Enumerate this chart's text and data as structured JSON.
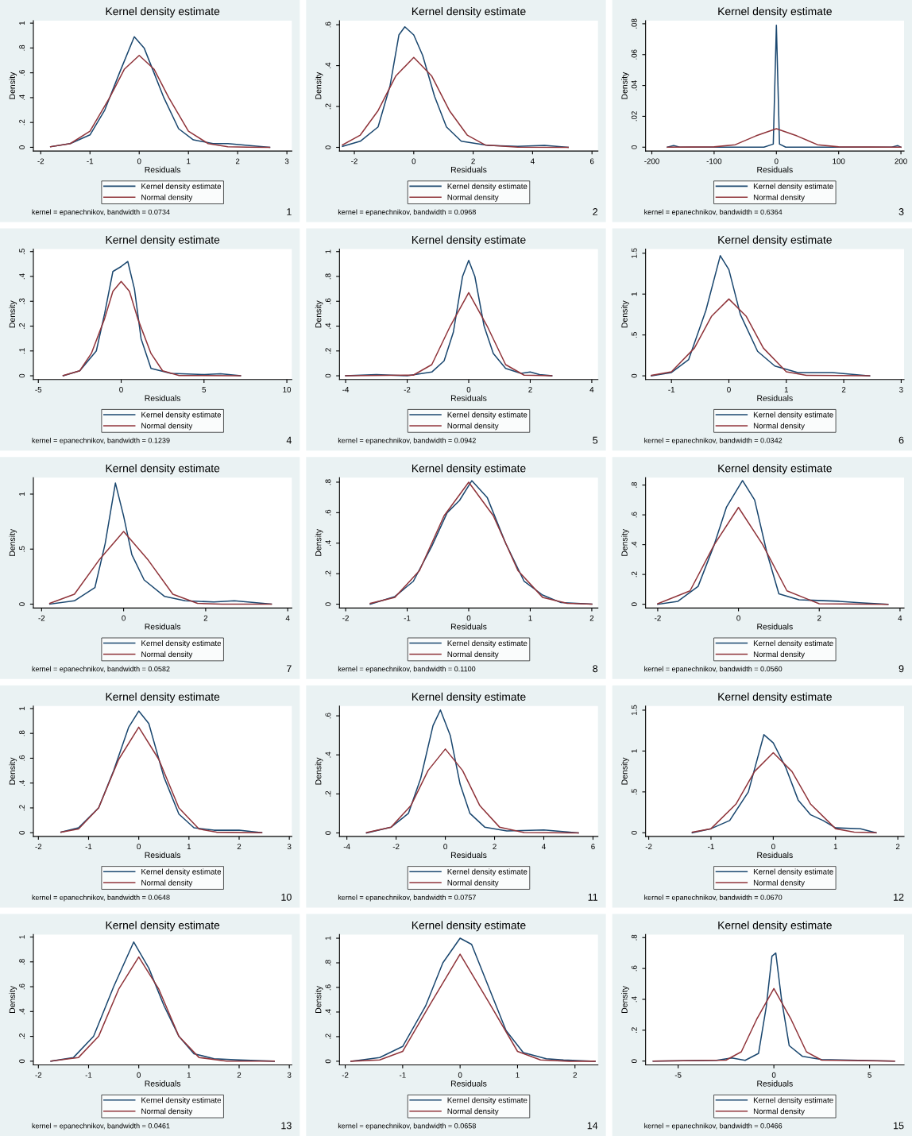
{
  "chart_data": [
    {
      "type": "line",
      "title": "Kernel density estimate",
      "xlabel": "Residuals",
      "ylabel": "Density",
      "legend": "bottom",
      "xlim": [
        -2.15,
        3.1
      ],
      "xticks": [
        -2,
        -1,
        0,
        1,
        2,
        3
      ],
      "ylim": [
        -0.03,
        1.02
      ],
      "yticks": [
        0,
        {
          "value": 0.2,
          "label": ".2"
        },
        {
          "value": 0.4,
          "label": ".4"
        },
        {
          "value": 0.6,
          "label": ".6"
        },
        {
          "value": 0.8,
          "label": ".8"
        },
        1
      ],
      "annotations": [
        "kernel = epanechnikov, bandwidth = 0.0734",
        "1"
      ],
      "series": [
        {
          "name": "Kernel density estimate",
          "color": "#1a476f",
          "x": [
            -1.8,
            -1.4,
            -1.0,
            -0.7,
            -0.4,
            -0.1,
            0.1,
            0.3,
            0.5,
            0.8,
            1.1,
            1.5,
            1.8,
            2.2,
            2.65
          ],
          "values": [
            0.005,
            0.03,
            0.1,
            0.3,
            0.6,
            0.89,
            0.8,
            0.6,
            0.4,
            0.15,
            0.06,
            0.03,
            0.03,
            0.015,
            0
          ]
        },
        {
          "name": "Normal density",
          "color": "#90353b",
          "x": [
            -1.8,
            -1.4,
            -1.0,
            -0.6,
            -0.3,
            0,
            0.3,
            0.6,
            1.0,
            1.4,
            1.8,
            2.2,
            2.65
          ],
          "values": [
            0.005,
            0.03,
            0.13,
            0.4,
            0.63,
            0.74,
            0.63,
            0.4,
            0.13,
            0.03,
            0.005,
            0.001,
            0
          ]
        }
      ]
    },
    {
      "type": "line",
      "title": "Kernel density estimate",
      "xlabel": "Residuals",
      "ylabel": "Density",
      "legend": "bottom",
      "xlim": [
        -2.5,
        6.2
      ],
      "xticks": [
        -2,
        0,
        2,
        4,
        6
      ],
      "ylim": [
        -0.018,
        0.62
      ],
      "yticks": [
        0,
        {
          "value": 0.2,
          "label": ".2"
        },
        {
          "value": 0.4,
          "label": ".4"
        },
        {
          "value": 0.6,
          "label": ".6"
        }
      ],
      "annotations": [
        "kernel = epanechnikov, bandwidth = 0.0968",
        "2"
      ],
      "series": [
        {
          "name": "Kernel density estimate",
          "color": "#1a476f",
          "x": [
            -2.4,
            -1.8,
            -1.2,
            -0.8,
            -0.5,
            -0.3,
            0,
            0.3,
            0.7,
            1.1,
            1.6,
            2.5,
            3.5,
            4.4,
            5.2
          ],
          "values": [
            0.005,
            0.03,
            0.1,
            0.3,
            0.55,
            0.59,
            0.55,
            0.45,
            0.25,
            0.1,
            0.03,
            0.01,
            0.005,
            0.01,
            0
          ]
        },
        {
          "name": "Normal density",
          "color": "#90353b",
          "x": [
            -2.4,
            -1.8,
            -1.2,
            -0.6,
            0,
            0.6,
            1.2,
            1.8,
            2.4,
            3.5,
            5.2
          ],
          "values": [
            0.012,
            0.06,
            0.18,
            0.35,
            0.44,
            0.35,
            0.18,
            0.06,
            0.012,
            0.001,
            0
          ]
        }
      ]
    },
    {
      "type": "line",
      "title": "Kernel density estimate",
      "xlabel": "Residuals",
      "ylabel": "Density",
      "legend": "bottom",
      "xlim": [
        -210,
        205
      ],
      "xticks": [
        -200,
        -100,
        0,
        100,
        200
      ],
      "ylim": [
        -0.0025,
        0.082
      ],
      "yticks": [
        0,
        {
          "value": 0.02,
          "label": ".02"
        },
        {
          "value": 0.04,
          "label": ".04"
        },
        {
          "value": 0.06,
          "label": ".06"
        },
        {
          "value": 0.08,
          "label": ".08"
        }
      ],
      "annotations": [
        "kernel = epanechnikov, bandwidth = 0.6364",
        "3"
      ],
      "series": [
        {
          "name": "Kernel density estimate",
          "color": "#1a476f",
          "x": [
            -175,
            -165,
            -155,
            -20,
            -5,
            0,
            5,
            15,
            185,
            195,
            200
          ],
          "values": [
            0,
            0.001,
            0,
            0,
            0.002,
            0.079,
            0.002,
            0,
            0,
            0.001,
            0
          ]
        },
        {
          "name": "Normal density",
          "color": "#90353b",
          "x": [
            -175,
            -100,
            -66,
            -33,
            0,
            33,
            66,
            100,
            200
          ],
          "values": [
            0,
            0.0002,
            0.0016,
            0.0073,
            0.012,
            0.0073,
            0.0016,
            0.0002,
            0
          ]
        }
      ]
    },
    {
      "type": "line",
      "title": "Kernel density estimate",
      "xlabel": "Residuals",
      "ylabel": "Density",
      "legend": "bottom",
      "xlim": [
        -5.3,
        10.3
      ],
      "xticks": [
        -5,
        0,
        5,
        10
      ],
      "ylim": [
        -0.015,
        0.51
      ],
      "yticks": [
        0,
        {
          "value": 0.1,
          "label": ".1"
        },
        {
          "value": 0.2,
          "label": ".2"
        },
        {
          "value": 0.3,
          "label": ".3"
        },
        {
          "value": 0.4,
          "label": ".4"
        },
        {
          "value": 0.5,
          "label": ".5"
        }
      ],
      "annotations": [
        "kernel = epanechnikov, bandwidth = 0.1239",
        "4"
      ],
      "series": [
        {
          "name": "Kernel density estimate",
          "color": "#1a476f",
          "x": [
            -3.5,
            -2.5,
            -1.5,
            -1,
            -0.5,
            0,
            0.4,
            0.8,
            1.2,
            1.8,
            3,
            5,
            6,
            7.2
          ],
          "values": [
            0,
            0.02,
            0.1,
            0.25,
            0.42,
            0.44,
            0.46,
            0.35,
            0.15,
            0.03,
            0.01,
            0.005,
            0.008,
            0
          ]
        },
        {
          "name": "Normal density",
          "color": "#90353b",
          "x": [
            -3.5,
            -2.5,
            -1.8,
            -1,
            -0.5,
            0,
            0.5,
            1,
            1.8,
            2.5,
            3.5,
            7.2
          ],
          "values": [
            0.001,
            0.02,
            0.09,
            0.23,
            0.34,
            0.38,
            0.34,
            0.23,
            0.09,
            0.02,
            0.001,
            0
          ]
        }
      ]
    },
    {
      "type": "line",
      "title": "Kernel density estimate",
      "xlabel": "Residuals",
      "ylabel": "Density",
      "legend": "bottom",
      "xlim": [
        -4.2,
        4.2
      ],
      "xticks": [
        -4,
        -2,
        0,
        2,
        4
      ],
      "ylim": [
        -0.03,
        1.02
      ],
      "yticks": [
        0,
        {
          "value": 0.2,
          "label": ".2"
        },
        {
          "value": 0.4,
          "label": ".4"
        },
        {
          "value": 0.6,
          "label": ".6"
        },
        {
          "value": 0.8,
          "label": ".8"
        },
        1
      ],
      "annotations": [
        "kernel = epanechnikov, bandwidth = 0.0942",
        "5"
      ],
      "series": [
        {
          "name": "Kernel density estimate",
          "color": "#1a476f",
          "x": [
            -4,
            -3,
            -2,
            -1.2,
            -0.8,
            -0.5,
            -0.2,
            0,
            0.2,
            0.5,
            0.8,
            1.2,
            1.7,
            2,
            2.3,
            2.7
          ],
          "values": [
            0,
            0.01,
            0,
            0.03,
            0.12,
            0.35,
            0.8,
            0.93,
            0.8,
            0.4,
            0.18,
            0.06,
            0.02,
            0.03,
            0.01,
            0
          ]
        },
        {
          "name": "Normal density",
          "color": "#90353b",
          "x": [
            -4,
            -1.8,
            -1.2,
            -0.6,
            0,
            0.6,
            1.2,
            1.8,
            2.7
          ],
          "values": [
            0,
            0.005,
            0.09,
            0.4,
            0.67,
            0.4,
            0.09,
            0.005,
            0
          ]
        }
      ]
    },
    {
      "type": "line",
      "title": "Kernel density estimate",
      "xlabel": "Residuals",
      "ylabel": "Density",
      "legend": "bottom",
      "xlim": [
        -1.45,
        3.05
      ],
      "xticks": [
        -1,
        0,
        1,
        2,
        3
      ],
      "ylim": [
        -0.045,
        1.55
      ],
      "yticks": [
        0,
        {
          "value": 0.5,
          "label": ".5"
        },
        1,
        1.5
      ],
      "annotations": [
        "kernel = epanechnikov, bandwidth = 0.0342",
        "6"
      ],
      "series": [
        {
          "name": "Kernel density estimate",
          "color": "#1a476f",
          "x": [
            -1.35,
            -1,
            -0.7,
            -0.4,
            -0.15,
            0,
            0.2,
            0.5,
            0.8,
            1.2,
            1.8,
            2.45
          ],
          "values": [
            0,
            0.04,
            0.2,
            0.8,
            1.47,
            1.3,
            0.75,
            0.3,
            0.12,
            0.04,
            0.04,
            0
          ]
        },
        {
          "name": "Normal density",
          "color": "#90353b",
          "x": [
            -1.35,
            -1,
            -0.6,
            -0.3,
            0,
            0.3,
            0.6,
            1,
            1.35,
            2.45
          ],
          "values": [
            0.005,
            0.05,
            0.34,
            0.73,
            0.94,
            0.73,
            0.34,
            0.05,
            0.005,
            0
          ]
        }
      ]
    },
    {
      "type": "line",
      "title": "Kernel density estimate",
      "xlabel": "Residuals",
      "ylabel": "Density",
      "legend": "bottom",
      "xlim": [
        -2.2,
        4.1
      ],
      "xticks": [
        -2,
        0,
        2,
        4
      ],
      "ylim": [
        -0.035,
        1.15
      ],
      "yticks": [
        0,
        {
          "value": 0.5,
          "label": ".5"
        },
        1
      ],
      "annotations": [
        "kernel = epanechnikov, bandwidth = 0.0582",
        "7"
      ],
      "series": [
        {
          "name": "Kernel density estimate",
          "color": "#1a476f",
          "x": [
            -1.8,
            -1.2,
            -0.7,
            -0.45,
            -0.2,
            0,
            0.2,
            0.5,
            1,
            1.5,
            2.2,
            2.7,
            3.6
          ],
          "values": [
            0,
            0.03,
            0.15,
            0.55,
            1.1,
            0.8,
            0.45,
            0.22,
            0.07,
            0.03,
            0.02,
            0.03,
            0
          ]
        },
        {
          "name": "Normal density",
          "color": "#90353b",
          "x": [
            -1.8,
            -1.2,
            -0.6,
            0,
            0.6,
            1.2,
            1.8,
            2.4,
            3.6
          ],
          "values": [
            0.007,
            0.09,
            0.4,
            0.66,
            0.4,
            0.09,
            0.007,
            0.0002,
            0
          ]
        }
      ]
    },
    {
      "type": "line",
      "title": "Kernel density estimate",
      "xlabel": "Residuals",
      "ylabel": "Density",
      "legend": "bottom",
      "xlim": [
        -2.1,
        2.1
      ],
      "xticks": [
        -2,
        -1,
        0,
        1,
        2
      ],
      "ylim": [
        -0.025,
        0.83
      ],
      "yticks": [
        0,
        {
          "value": 0.2,
          "label": ".2"
        },
        {
          "value": 0.4,
          "label": ".4"
        },
        {
          "value": 0.6,
          "label": ".6"
        },
        {
          "value": 0.8,
          "label": ".8"
        }
      ],
      "annotations": [
        "kernel = epanechnikov, bandwidth = 0.1100",
        "8"
      ],
      "series": [
        {
          "name": "Kernel density estimate",
          "color": "#1a476f",
          "x": [
            -1.6,
            -1.2,
            -0.9,
            -0.6,
            -0.35,
            -0.15,
            0.05,
            0.3,
            0.6,
            0.9,
            1.2,
            1.5,
            2
          ],
          "values": [
            0,
            0.05,
            0.15,
            0.38,
            0.6,
            0.68,
            0.81,
            0.7,
            0.4,
            0.15,
            0.06,
            0.01,
            0
          ]
        },
        {
          "name": "Normal density",
          "color": "#90353b",
          "x": [
            -1.6,
            -1.2,
            -0.8,
            -0.4,
            0,
            0.4,
            0.8,
            1.2,
            1.6,
            2
          ],
          "values": [
            0.005,
            0.045,
            0.22,
            0.58,
            0.8,
            0.58,
            0.22,
            0.045,
            0.005,
            0
          ]
        }
      ]
    },
    {
      "type": "line",
      "title": "Kernel density estimate",
      "xlabel": "Residuals",
      "ylabel": "Density",
      "legend": "bottom",
      "xlim": [
        -2.3,
        4.1
      ],
      "xticks": [
        -2,
        0,
        2,
        4
      ],
      "ylim": [
        -0.025,
        0.85
      ],
      "yticks": [
        0,
        {
          "value": 0.2,
          "label": ".2"
        },
        {
          "value": 0.4,
          "label": ".4"
        },
        {
          "value": 0.6,
          "label": ".6"
        },
        {
          "value": 0.8,
          "label": ".8"
        }
      ],
      "annotations": [
        "kernel = epanechnikov, bandwidth = 0.0560",
        "9"
      ],
      "series": [
        {
          "name": "Kernel density estimate",
          "color": "#1a476f",
          "x": [
            -2,
            -1.5,
            -1,
            -0.6,
            -0.3,
            0.1,
            0.4,
            0.7,
            1,
            1.5,
            2.5,
            3,
            3.7
          ],
          "values": [
            0,
            0.02,
            0.12,
            0.4,
            0.65,
            0.83,
            0.7,
            0.35,
            0.07,
            0.03,
            0.02,
            0.01,
            0
          ]
        },
        {
          "name": "Normal density",
          "color": "#90353b",
          "x": [
            -2,
            -1.2,
            -0.6,
            0,
            0.6,
            1.2,
            2,
            3.7
          ],
          "values": [
            0.003,
            0.09,
            0.4,
            0.65,
            0.4,
            0.09,
            0.003,
            0
          ]
        }
      ]
    },
    {
      "type": "line",
      "title": "Kernel density estimate",
      "xlabel": "Residuals",
      "ylabel": "Density",
      "legend": "bottom",
      "xlim": [
        -2.1,
        3.05
      ],
      "xticks": [
        -2,
        -1,
        0,
        1,
        2,
        3
      ],
      "ylim": [
        -0.03,
        1.02
      ],
      "yticks": [
        0,
        {
          "value": 0.2,
          "label": ".2"
        },
        {
          "value": 0.4,
          "label": ".4"
        },
        {
          "value": 0.6,
          "label": ".6"
        },
        {
          "value": 0.8,
          "label": ".8"
        },
        1
      ],
      "annotations": [
        "kernel = epanechnikov, bandwidth = 0.0648",
        "10"
      ],
      "series": [
        {
          "name": "Kernel density estimate",
          "color": "#1a476f",
          "x": [
            -1.55,
            -1.2,
            -0.8,
            -0.5,
            -0.2,
            0,
            0.2,
            0.5,
            0.8,
            1.1,
            1.5,
            2,
            2.45
          ],
          "values": [
            0.005,
            0.04,
            0.2,
            0.5,
            0.85,
            0.98,
            0.88,
            0.45,
            0.15,
            0.04,
            0.02,
            0.02,
            0
          ]
        },
        {
          "name": "Normal density",
          "color": "#90353b",
          "x": [
            -1.55,
            -1.2,
            -0.8,
            -0.4,
            0,
            0.4,
            0.8,
            1.2,
            1.55,
            2.45
          ],
          "values": [
            0.004,
            0.03,
            0.2,
            0.59,
            0.85,
            0.59,
            0.2,
            0.03,
            0.004,
            0
          ]
        }
      ]
    },
    {
      "type": "line",
      "title": "Kernel density estimate",
      "xlabel": "Residuals",
      "ylabel": "Density",
      "legend": "bottom",
      "xlim": [
        -4.3,
        6.2
      ],
      "xticks": [
        -4,
        -2,
        0,
        2,
        4,
        6
      ],
      "ylim": [
        -0.018,
        0.65
      ],
      "yticks": [
        0,
        {
          "value": 0.2,
          "label": ".2"
        },
        {
          "value": 0.4,
          "label": ".4"
        },
        {
          "value": 0.6,
          "label": ".6"
        }
      ],
      "annotations": [
        "kernel = epanechnikov, bandwidth = 0.0757",
        "11"
      ],
      "series": [
        {
          "name": "Kernel density estimate",
          "color": "#1a476f",
          "x": [
            -3.2,
            -2.2,
            -1.5,
            -1,
            -0.5,
            -0.2,
            0.2,
            0.6,
            1,
            1.6,
            2.5,
            4,
            5.4
          ],
          "values": [
            0,
            0.03,
            0.1,
            0.28,
            0.55,
            0.63,
            0.5,
            0.25,
            0.1,
            0.03,
            0.01,
            0.015,
            0
          ]
        },
        {
          "name": "Normal density",
          "color": "#90353b",
          "x": [
            -3.2,
            -2.2,
            -1.4,
            -0.7,
            0,
            0.7,
            1.4,
            2.2,
            3.2,
            5.4
          ],
          "values": [
            0.002,
            0.03,
            0.14,
            0.32,
            0.43,
            0.32,
            0.14,
            0.03,
            0.002,
            0
          ]
        }
      ]
    },
    {
      "type": "line",
      "title": "Kernel density estimate",
      "xlabel": "Residuals",
      "ylabel": "Density",
      "legend": "bottom",
      "xlim": [
        -2.05,
        2.1
      ],
      "xticks": [
        -2,
        -1,
        0,
        1,
        2
      ],
      "ylim": [
        -0.045,
        1.55
      ],
      "yticks": [
        0,
        {
          "value": 0.5,
          "label": ".5"
        },
        1,
        1.5
      ],
      "annotations": [
        "kernel = epanechnikov, bandwidth = 0.0670",
        "12"
      ],
      "series": [
        {
          "name": "Kernel density estimate",
          "color": "#1a476f",
          "x": [
            -1.3,
            -1,
            -0.7,
            -0.4,
            -0.15,
            0,
            0.2,
            0.4,
            0.6,
            0.8,
            1,
            1.4,
            1.65
          ],
          "values": [
            0,
            0.05,
            0.15,
            0.5,
            1.2,
            1.1,
            0.8,
            0.4,
            0.22,
            0.15,
            0.06,
            0.05,
            0
          ]
        },
        {
          "name": "Normal density",
          "color": "#90353b",
          "x": [
            -1.3,
            -1,
            -0.6,
            -0.3,
            0,
            0.3,
            0.6,
            1,
            1.3,
            1.65
          ],
          "values": [
            0.007,
            0.05,
            0.35,
            0.75,
            0.98,
            0.75,
            0.35,
            0.05,
            0.007,
            0
          ]
        }
      ]
    },
    {
      "type": "line",
      "title": "Kernel density estimate",
      "xlabel": "Residuals",
      "ylabel": "Density",
      "legend": "bottom",
      "xlim": [
        -2.1,
        3.05
      ],
      "xticks": [
        -2,
        -1,
        0,
        1,
        2,
        3
      ],
      "ylim": [
        -0.03,
        1.02
      ],
      "yticks": [
        0,
        {
          "value": 0.2,
          "label": ".2"
        },
        {
          "value": 0.4,
          "label": ".4"
        },
        {
          "value": 0.6,
          "label": ".6"
        },
        {
          "value": 0.8,
          "label": ".8"
        },
        1
      ],
      "annotations": [
        "kernel = epanechnikov, bandwidth = 0.0461",
        "13"
      ],
      "series": [
        {
          "name": "Kernel density estimate",
          "color": "#1a476f",
          "x": [
            -1.75,
            -1.3,
            -0.9,
            -0.5,
            -0.1,
            0.2,
            0.5,
            0.8,
            1.1,
            1.5,
            2,
            2.7
          ],
          "values": [
            0,
            0.03,
            0.2,
            0.6,
            0.96,
            0.75,
            0.45,
            0.2,
            0.06,
            0.02,
            0.01,
            0
          ]
        },
        {
          "name": "Normal density",
          "color": "#90353b",
          "x": [
            -1.75,
            -1.2,
            -0.8,
            -0.4,
            0,
            0.4,
            0.8,
            1.2,
            1.75,
            2.7
          ],
          "values": [
            0.001,
            0.03,
            0.2,
            0.58,
            0.84,
            0.58,
            0.2,
            0.03,
            0.001,
            0
          ]
        }
      ]
    },
    {
      "type": "line",
      "title": "Kernel density estimate",
      "xlabel": "Residuals",
      "ylabel": "Density",
      "legend": "bottom",
      "xlim": [
        -2.1,
        2.4
      ],
      "xticks": [
        -2,
        -1,
        0,
        1,
        2
      ],
      "ylim": [
        -0.03,
        1.03
      ],
      "yticks": [
        0,
        {
          "value": 0.2,
          "label": ".2"
        },
        {
          "value": 0.4,
          "label": ".4"
        },
        {
          "value": 0.6,
          "label": ".6"
        },
        {
          "value": 0.8,
          "label": ".8"
        },
        1
      ],
      "annotations": [
        "kernel = epanechnikov, bandwidth = 0.0658",
        "14"
      ],
      "series": [
        {
          "name": "Kernel density estimate",
          "color": "#1a476f",
          "x": [
            -1.9,
            -1.4,
            -1,
            -0.6,
            -0.3,
            0,
            0.2,
            0.5,
            0.8,
            1.1,
            1.5,
            1.8,
            2.35
          ],
          "values": [
            0,
            0.03,
            0.12,
            0.45,
            0.8,
            1.0,
            0.95,
            0.6,
            0.25,
            0.07,
            0.02,
            0.01,
            0
          ]
        },
        {
          "name": "Normal density",
          "color": "#90353b",
          "x": [
            -1.9,
            -1.4,
            -1,
            -0.5,
            0,
            0.5,
            1,
            1.4,
            1.9,
            2.35
          ],
          "values": [
            0,
            0.01,
            0.08,
            0.48,
            0.87,
            0.48,
            0.08,
            0.01,
            0,
            0
          ]
        }
      ]
    },
    {
      "type": "line",
      "title": "Kernel density estimate",
      "xlabel": "Residuals",
      "ylabel": "Density",
      "legend": "bottom",
      "xlim": [
        -6.7,
        6.8
      ],
      "xticks": [
        -5,
        0,
        5
      ],
      "ylim": [
        -0.025,
        0.82
      ],
      "yticks": [
        0,
        {
          "value": 0.2,
          "label": ".2"
        },
        {
          "value": 0.4,
          "label": ".4"
        },
        {
          "value": 0.6,
          "label": ".6"
        },
        {
          "value": 0.8,
          "label": ".8"
        }
      ],
      "annotations": [
        "kernel = epanechnikov, bandwidth = 0.0466",
        "15"
      ],
      "series": [
        {
          "name": "Kernel density estimate",
          "color": "#1a476f",
          "x": [
            -6.3,
            -3,
            -2.2,
            -1.5,
            -0.8,
            -0.4,
            -0.1,
            0.1,
            0.4,
            0.8,
            1.5,
            2.5,
            6.3
          ],
          "values": [
            0,
            0.005,
            0.02,
            0.005,
            0.05,
            0.35,
            0.68,
            0.7,
            0.4,
            0.1,
            0.03,
            0.01,
            0
          ]
        },
        {
          "name": "Normal density",
          "color": "#90353b",
          "x": [
            -6.3,
            -2.5,
            -1.7,
            -0.9,
            0,
            0.9,
            1.7,
            2.5,
            6.3
          ],
          "values": [
            0,
            0.006,
            0.06,
            0.27,
            0.47,
            0.27,
            0.06,
            0.006,
            0
          ]
        }
      ]
    }
  ]
}
